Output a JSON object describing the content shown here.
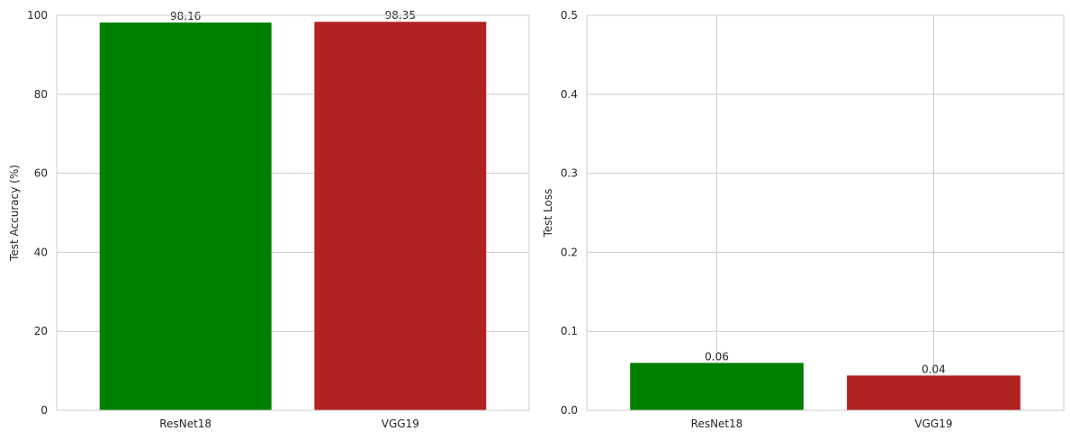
{
  "chart_data": [
    {
      "type": "bar",
      "categories": [
        "ResNet18",
        "VGG19"
      ],
      "values": [
        98.16,
        98.35
      ],
      "value_labels": [
        "98.16",
        "98.35"
      ],
      "colors": [
        "#008000",
        "#b22222"
      ],
      "title": "",
      "xlabel": "",
      "ylabel": "Test Accuracy (%)",
      "ylim": [
        0,
        100
      ],
      "yticks": [
        0,
        20,
        40,
        60,
        80,
        100
      ],
      "ytick_labels": [
        "0",
        "20",
        "40",
        "60",
        "80",
        "100"
      ],
      "grid": true
    },
    {
      "type": "bar",
      "categories": [
        "ResNet18",
        "VGG19"
      ],
      "values": [
        0.06,
        0.044
      ],
      "value_labels": [
        "0.06",
        "0.04"
      ],
      "colors": [
        "#008000",
        "#b22222"
      ],
      "title": "",
      "xlabel": "",
      "ylabel": "Test Loss",
      "ylim": [
        0,
        0.5
      ],
      "yticks": [
        0,
        0.1,
        0.2,
        0.3,
        0.4,
        0.5
      ],
      "ytick_labels": [
        "0.0",
        "0.1",
        "0.2",
        "0.3",
        "0.4",
        "0.5"
      ],
      "grid": true
    }
  ]
}
